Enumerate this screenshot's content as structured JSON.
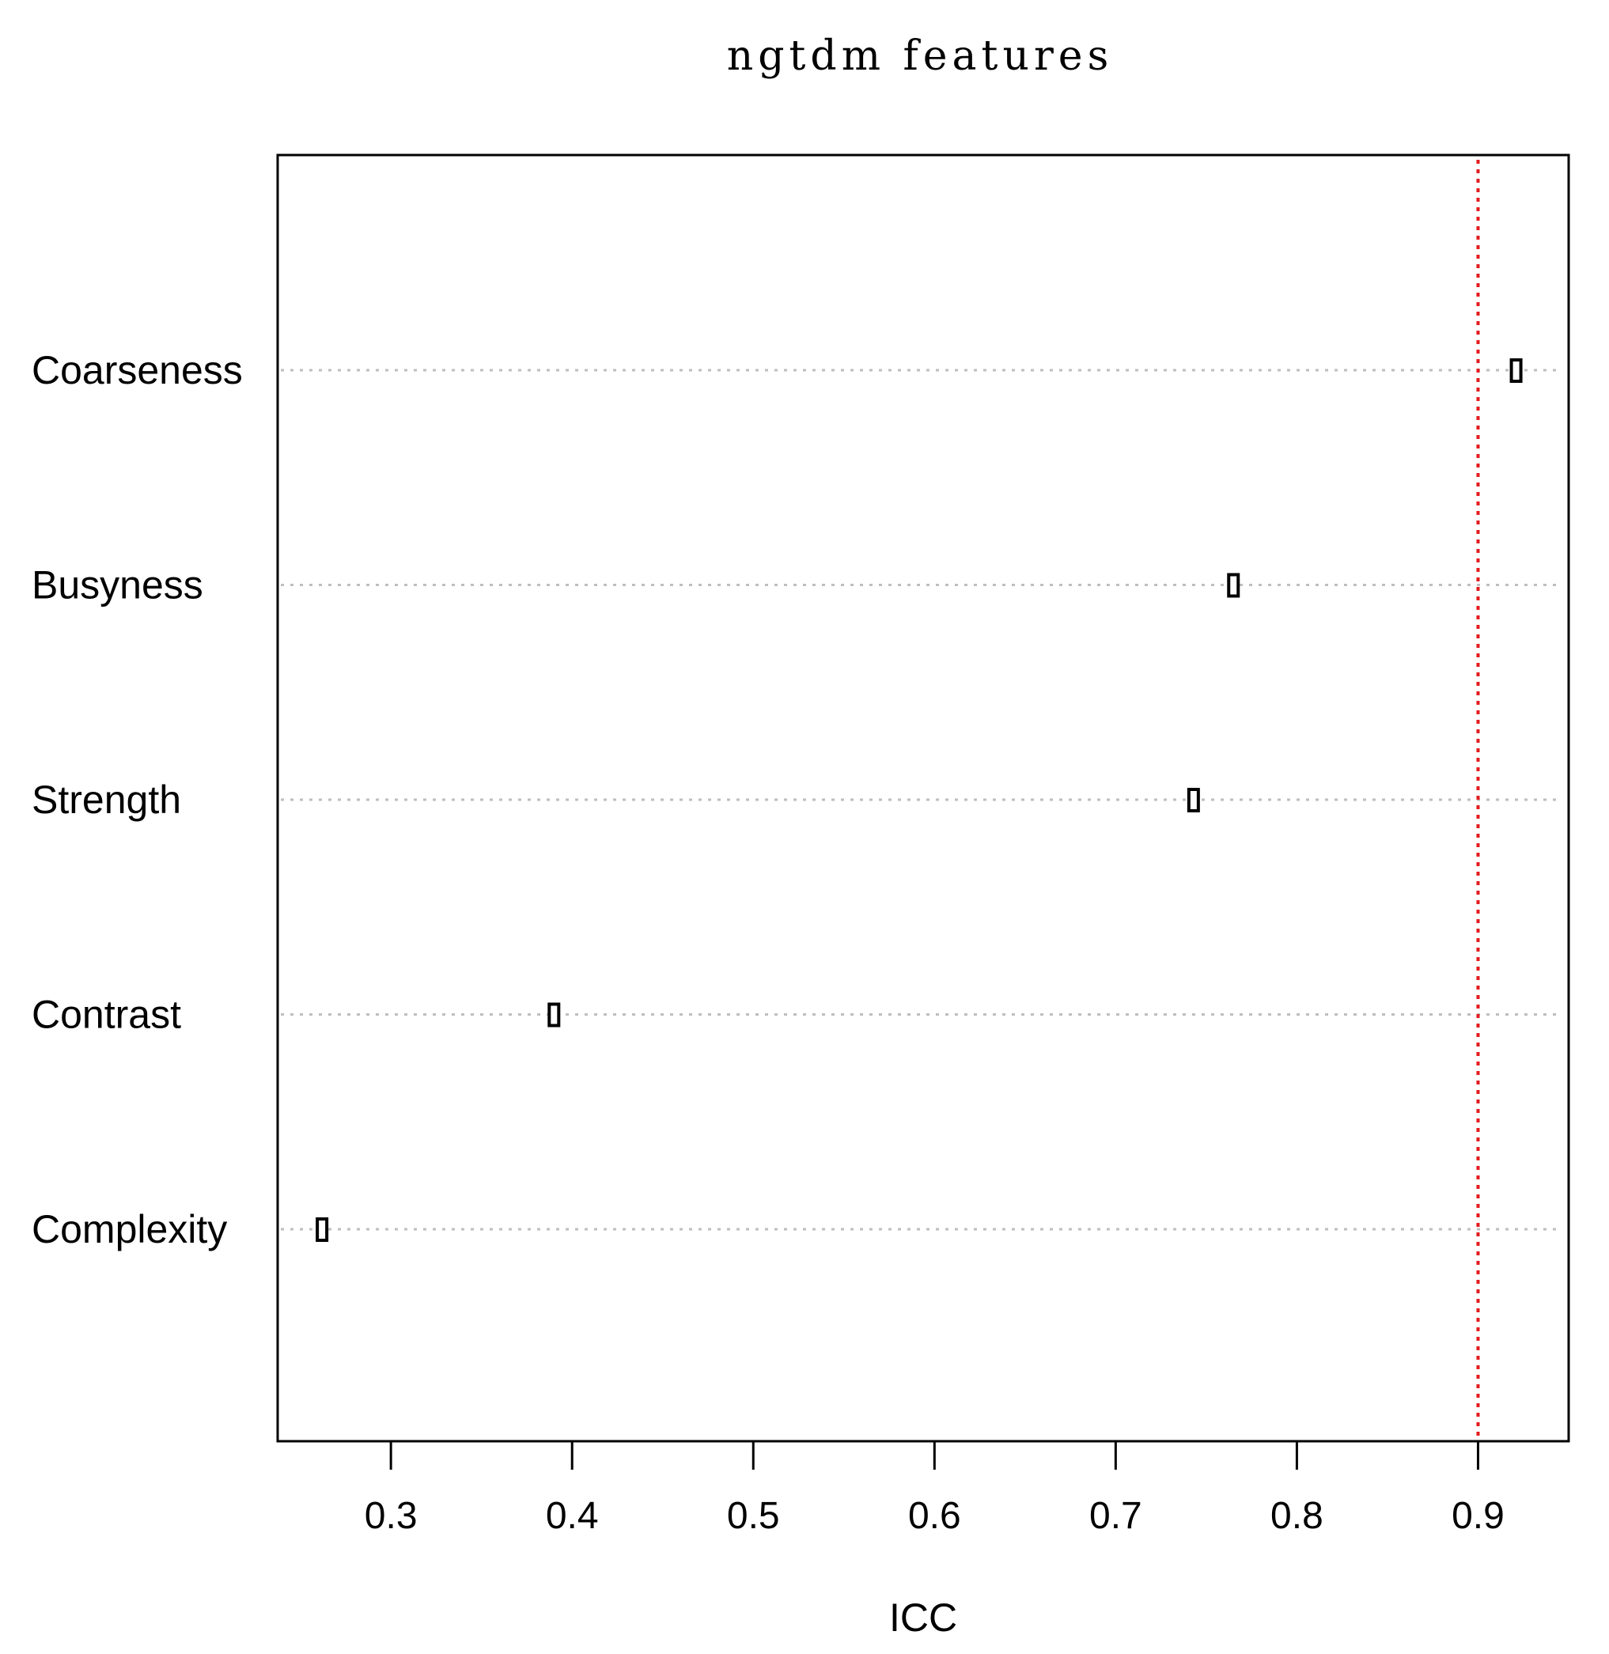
{
  "chart_data": {
    "type": "scatter",
    "title": "ngtdm features",
    "xlabel": "ICC",
    "ylabel": "",
    "xlim": [
      0.2375,
      0.95
    ],
    "x_ticks": [
      0.3,
      0.4,
      0.5,
      0.6,
      0.7,
      0.8,
      0.9
    ],
    "x_tick_labels": [
      "0.3",
      "0.4",
      "0.5",
      "0.6",
      "0.7",
      "0.8",
      "0.9"
    ],
    "categories": [
      "Coarseness",
      "Busyness",
      "Strength",
      "Contrast",
      "Complexity"
    ],
    "values": [
      0.921,
      0.765,
      0.743,
      0.39,
      0.262
    ],
    "reference_line": {
      "x": 0.9,
      "color": "#e41a1c",
      "style": "dotted"
    },
    "grid": "horizontal dotted gray",
    "legend": "none",
    "marker": "hollow rectangle",
    "colors": {
      "point": "#000000",
      "grid": "#bebebe",
      "reference": "#e41a1c",
      "frame": "#000000"
    }
  }
}
